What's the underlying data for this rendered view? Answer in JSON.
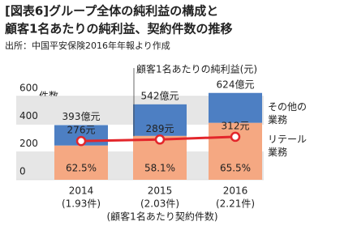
{
  "chart_data": {
    "type": "bar",
    "title": [
      "[図表6]グループ全体の純利益の構成と",
      "顧客1名あたりの純利益、契約件数の推移"
    ],
    "subtitle": "出所：中国平安保険2016年年報より作成",
    "ylabel": "件数",
    "xlabel": "(顧客1名あたり契約件数)",
    "categories": [
      "2014",
      "2015",
      "2016"
    ],
    "category_sublabels": [
      "(1.93件)",
      "(2.03件)",
      "(2.21件)"
    ],
    "ylim": [
      0,
      640
    ],
    "yticks": [
      0,
      200,
      400,
      600
    ],
    "totals": {
      "values": [
        393,
        542,
        624
      ],
      "value_labels": [
        "393億元",
        "542億元",
        "624億元"
      ]
    },
    "series": [
      {
        "name": "リテール業務",
        "color": "#f5a882",
        "values": [
          62.5,
          58.1,
          65.5
        ],
        "value_labels": [
          "62.5%",
          "58.1%",
          "65.5%"
        ]
      },
      {
        "name": "その他の業務",
        "color": "#4d7fc3"
      },
      {
        "name": "顧客1名あたりの純利益(元)",
        "color": "#e3262b",
        "axis": "y2",
        "values": [
          276,
          289,
          312
        ],
        "value_labels": [
          "276元",
          "289元",
          "312元"
        ]
      }
    ],
    "y2lim": [
      -50,
      700
    ]
  }
}
